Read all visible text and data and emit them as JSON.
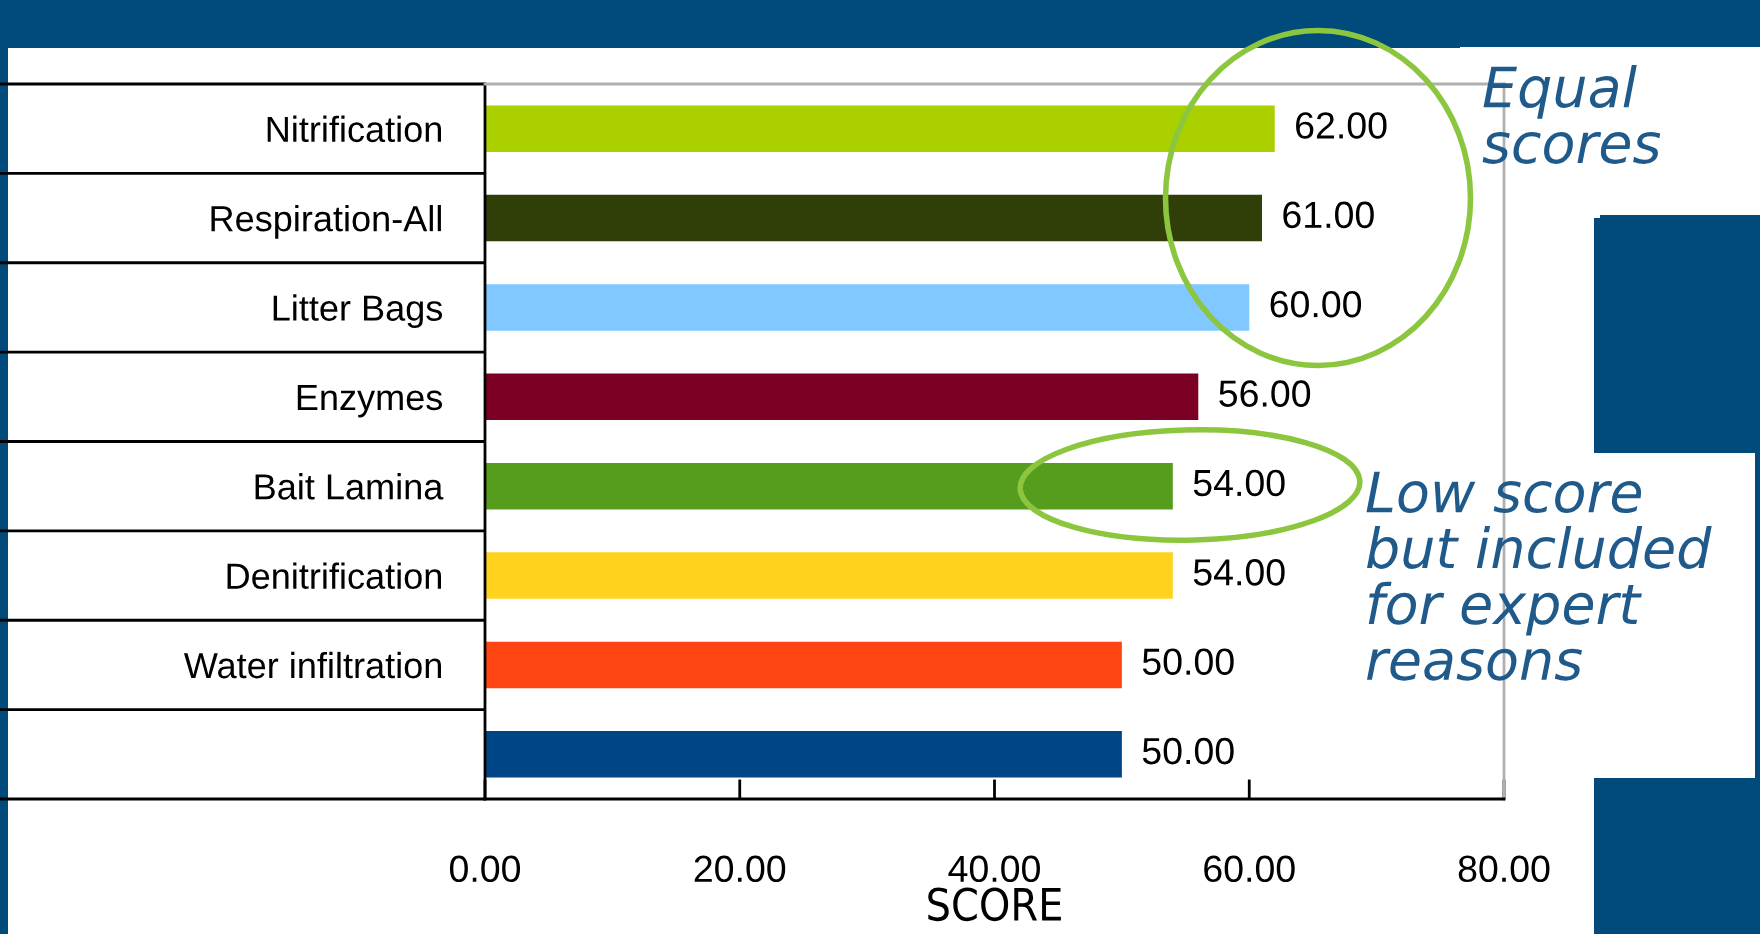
{
  "chart_data": {
    "type": "bar",
    "orientation": "horizontal",
    "categories": [
      "Nitrification",
      "Respiration-All",
      "Litter Bags",
      "Enzymes",
      "Bait Lamina",
      "Denitrification",
      "Water infiltration",
      null
    ],
    "values": [
      62,
      61,
      60,
      56,
      54,
      54,
      50,
      50
    ],
    "value_labels": [
      "62.00",
      "61.00",
      "60.00",
      "56.00",
      "54.00",
      "54.00",
      "50.00",
      "50.00"
    ],
    "colors": [
      "#aad000",
      "#2f3f07",
      "#80c8ff",
      "#7b0023",
      "#569d1e",
      "#ffd21e",
      "#ff4612",
      "#004586"
    ],
    "xlabel": "SCORE",
    "xlim": [
      0,
      80
    ],
    "xticks": [
      {
        "value": 0,
        "label": "0.00"
      },
      {
        "value": 20,
        "label": "20.00"
      },
      {
        "value": 40,
        "label": "40.00"
      },
      {
        "value": 60,
        "label": "60.00"
      },
      {
        "value": 80,
        "label": "80.00"
      }
    ],
    "annotations": [
      "Equal scores",
      "Low score but included for expert reasons"
    ],
    "grid": false
  }
}
